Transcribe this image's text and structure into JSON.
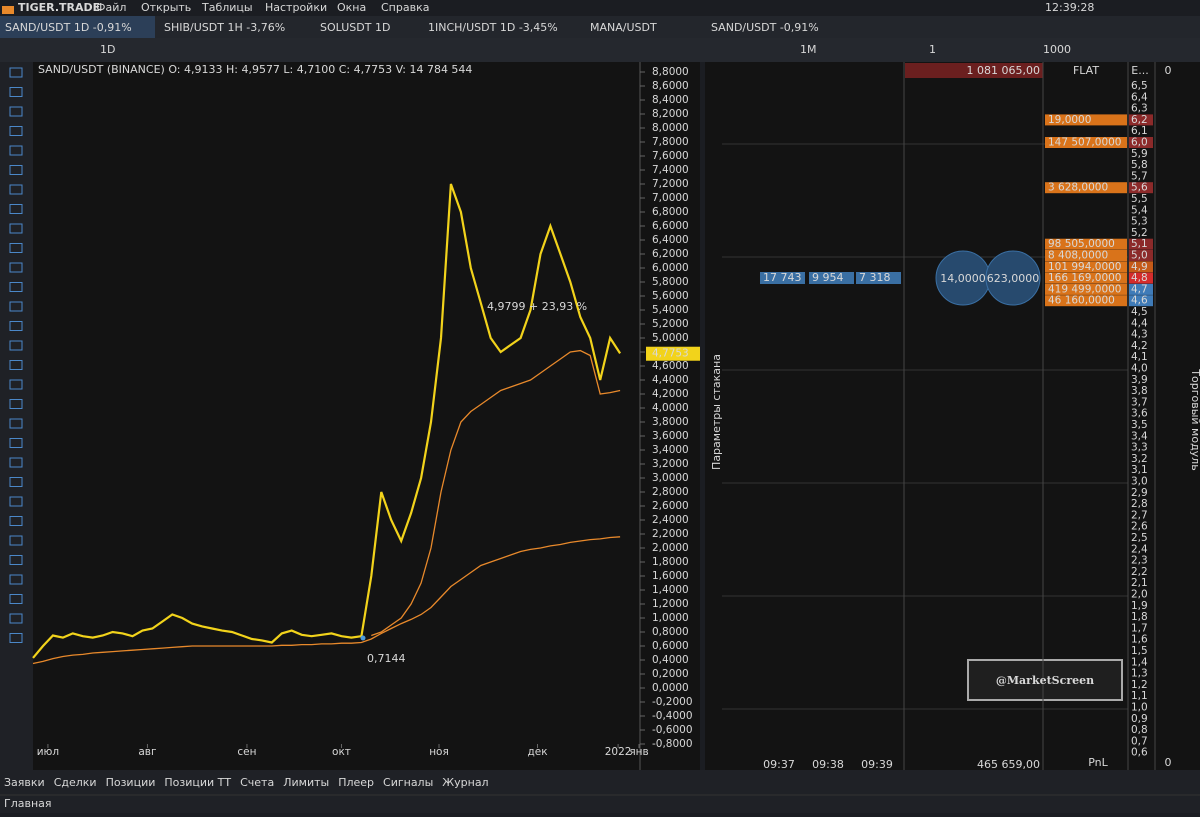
{
  "title_bar": {
    "logo": "TIGER.TRADE",
    "menu": [
      "Файл",
      "Открыть",
      "Таблицы",
      "Настройки",
      "Окна",
      "Справка"
    ],
    "clock": "12:39:28"
  },
  "tabs": [
    "SAND/USDT 1D -0,91%",
    "SHIB/USDT 1H -3,76%",
    "SOLUSDT 1D",
    "1INCH/USDT 1D -3,45%",
    "MANA/USDT"
  ],
  "dom_tab": "SAND/USDT -0,91%",
  "toolbar": {
    "timeframe": "1D",
    "dom_timeframe": "1M",
    "dom_count": "1",
    "dom_step": "1000"
  },
  "price_chart": {
    "header": "SAND/USDT (BINANCE) O: 4,9133 H: 4,9577 L: 4,7100 C: 4,7753 V: 14 784 544",
    "ylim": [
      -0.8,
      8.8
    ],
    "xlim": [
      0,
      61
    ],
    "yticks": [
      {
        "value": 8.8,
        "label": "8,8000"
      },
      {
        "value": 8.6,
        "label": "8,6000"
      },
      {
        "value": 8.4,
        "label": "8,4000"
      },
      {
        "value": 8.2,
        "label": "8,2000"
      },
      {
        "value": 8,
        "label": "8,0000"
      },
      {
        "value": 7.8,
        "label": "7,8000"
      },
      {
        "value": 7.6,
        "label": "7,6000"
      },
      {
        "value": 7.4,
        "label": "7,4000"
      },
      {
        "value": 7.2,
        "label": "7,2000"
      },
      {
        "value": 7,
        "label": "7,0000"
      },
      {
        "value": 6.8,
        "label": "6,8000"
      },
      {
        "value": 6.6,
        "label": "6,6000"
      },
      {
        "value": 6.4,
        "label": "6,4000"
      },
      {
        "value": 6.2,
        "label": "6,2000"
      },
      {
        "value": 6,
        "label": "6,0000"
      },
      {
        "value": 5.8,
        "label": "5,8000"
      },
      {
        "value": 5.6,
        "label": "5,6000"
      },
      {
        "value": 5.4,
        "label": "5,4000"
      },
      {
        "value": 5.2,
        "label": "5,2000"
      },
      {
        "value": 5,
        "label": "5,0000"
      },
      {
        "value": 4.8,
        "label": "4,8000"
      },
      {
        "value": 4.6,
        "label": "4,6000"
      },
      {
        "value": 4.4,
        "label": "4,4000"
      },
      {
        "value": 4.2,
        "label": "4,2000"
      },
      {
        "value": 4,
        "label": "4,0000"
      },
      {
        "value": 3.8,
        "label": "3,8000"
      },
      {
        "value": 3.6,
        "label": "3,6000"
      },
      {
        "value": 3.4,
        "label": "3,4000"
      },
      {
        "value": 3.2,
        "label": "3,2000"
      },
      {
        "value": 3,
        "label": "3,0000"
      },
      {
        "value": 2.8,
        "label": "2,8000"
      },
      {
        "value": 2.6,
        "label": "2,6000"
      },
      {
        "value": 2.4,
        "label": "2,4000"
      },
      {
        "value": 2.2,
        "label": "2,2000"
      },
      {
        "value": 2,
        "label": "2,0000"
      },
      {
        "value": 1.8,
        "label": "1,8000"
      },
      {
        "value": 1.6,
        "label": "1,6000"
      },
      {
        "value": 1.4,
        "label": "1,4000"
      },
      {
        "value": 1.2,
        "label": "1,2000"
      },
      {
        "value": 1,
        "label": "1,0000"
      },
      {
        "value": 0.8,
        "label": "0,8000"
      },
      {
        "value": 0.6,
        "label": "0,6000"
      },
      {
        "value": 0.4,
        "label": "0,4000"
      },
      {
        "value": 0.2,
        "label": "0,2000"
      },
      {
        "value": 0,
        "label": "0,0000"
      },
      {
        "value": -0.2,
        "label": "-0,2000"
      },
      {
        "value": -0.4,
        "label": "-0,4000"
      },
      {
        "value": -0.6,
        "label": "-0,6000"
      },
      {
        "value": -0.8,
        "label": "-0,8000"
      }
    ],
    "xticks": [
      {
        "value": 1.5,
        "label": "июл"
      },
      {
        "value": 11.5,
        "label": "авг"
      },
      {
        "value": 21.5,
        "label": "сен"
      },
      {
        "value": 31,
        "label": "окт"
      },
      {
        "value": 40.8,
        "label": "ноя"
      },
      {
        "value": 50.7,
        "label": "дек"
      },
      {
        "value": 58.8,
        "label": "2022"
      },
      {
        "value": 60.9,
        "label": "янв"
      }
    ],
    "close": {
      "color": "#f2d31b",
      "values": [
        0.43,
        0.6,
        0.75,
        0.72,
        0.78,
        0.74,
        0.72,
        0.75,
        0.8,
        0.78,
        0.74,
        0.82,
        0.85,
        0.95,
        1.05,
        1.0,
        0.92,
        0.88,
        0.85,
        0.82,
        0.8,
        0.75,
        0.7,
        0.68,
        0.65,
        0.78,
        0.82,
        0.76,
        0.74,
        0.76,
        0.78,
        0.74,
        0.72,
        0.74,
        1.6,
        2.8,
        2.4,
        2.1,
        2.5,
        3.0,
        3.8,
        5.0,
        7.2,
        6.8,
        6.0,
        5.5,
        5.0,
        4.8,
        4.9,
        5.0,
        5.4,
        6.2,
        6.6,
        6.2,
        5.8,
        5.3,
        5.0,
        4.4,
        5.0,
        4.78
      ]
    },
    "ma_fast": {
      "color": "#e8892b",
      "values": [
        null,
        null,
        null,
        null,
        null,
        null,
        null,
        null,
        null,
        null,
        null,
        null,
        null,
        null,
        null,
        null,
        null,
        null,
        null,
        null,
        null,
        null,
        null,
        null,
        null,
        null,
        null,
        null,
        null,
        null,
        null,
        null,
        null,
        null,
        0.75,
        0.8,
        0.9,
        1.0,
        1.2,
        1.5,
        2.0,
        2.8,
        3.4,
        3.8,
        3.95,
        4.05,
        4.15,
        4.25,
        4.3,
        4.35,
        4.4,
        4.5,
        4.6,
        4.7,
        4.8,
        4.82,
        4.75,
        4.2,
        4.22,
        4.25
      ]
    },
    "ma_slow": {
      "color": "#e8892b",
      "values": [
        0.35,
        0.38,
        0.42,
        0.45,
        0.47,
        0.48,
        0.5,
        0.51,
        0.52,
        0.53,
        0.54,
        0.55,
        0.56,
        0.57,
        0.58,
        0.59,
        0.6,
        0.6,
        0.6,
        0.6,
        0.6,
        0.6,
        0.6,
        0.6,
        0.6,
        0.61,
        0.61,
        0.62,
        0.62,
        0.63,
        0.63,
        0.64,
        0.64,
        0.65,
        0.7,
        0.78,
        0.85,
        0.92,
        0.98,
        1.05,
        1.15,
        1.3,
        1.45,
        1.55,
        1.65,
        1.75,
        1.8,
        1.85,
        1.9,
        1.95,
        1.98,
        2.0,
        2.03,
        2.05,
        2.08,
        2.1,
        2.12,
        2.13,
        2.15,
        2.16
      ]
    },
    "last_price": {
      "value": 4.7753,
      "label": "4,7753"
    },
    "low_annotation": {
      "value": 0.7144,
      "label": "0,7144"
    },
    "change_annotation": "4,9799 + 23,93 %"
  },
  "order_book": {
    "top_volume": "1 081 065,00",
    "headers": [
      "FLAT",
      "E...",
      "0"
    ],
    "levels": [
      {
        "price": "6,5"
      },
      {
        "price": "6,4"
      },
      {
        "price": "6,3"
      },
      {
        "price": "6,2",
        "size": "19,0000",
        "color": "#8c2a2a"
      },
      {
        "price": "6,1"
      },
      {
        "price": "6,0",
        "size": "147 507,0000",
        "color": "#8c2a2a"
      },
      {
        "price": "5,9"
      },
      {
        "price": "5,8"
      },
      {
        "price": "5,7"
      },
      {
        "price": "5,6",
        "size": "3 628,0000",
        "color": "#8c2a2a"
      },
      {
        "price": "5,5"
      },
      {
        "price": "5,4"
      },
      {
        "price": "5,3"
      },
      {
        "price": "5,2"
      },
      {
        "price": "5,1",
        "size": "98 505,0000",
        "color": "#8c2a2a"
      },
      {
        "price": "5,0",
        "size": "8 408,0000",
        "color": "#8c2a2a"
      },
      {
        "price": "4,9",
        "size": "101 994,0000",
        "color": "#c55a18"
      },
      {
        "price": "4,8",
        "size": "166 169,0000",
        "color": "#d42c2c"
      },
      {
        "price": "4,7",
        "size": "419 499,0000",
        "color": "#3f7bb8"
      },
      {
        "price": "4,6",
        "size": "46 160,0000",
        "color": "#3f7bb8"
      },
      {
        "price": "4,5"
      },
      {
        "price": "4,4"
      },
      {
        "price": "4,3"
      },
      {
        "price": "4,2"
      },
      {
        "price": "4,1"
      },
      {
        "price": "4,0"
      },
      {
        "price": "3,9"
      },
      {
        "price": "3,8"
      },
      {
        "price": "3,7"
      },
      {
        "price": "3,6"
      },
      {
        "price": "3,5"
      },
      {
        "price": "3,4"
      },
      {
        "price": "3,3"
      },
      {
        "price": "3,2"
      },
      {
        "price": "3,1"
      },
      {
        "price": "3,0"
      },
      {
        "price": "2,9"
      },
      {
        "price": "2,8"
      },
      {
        "price": "2,7"
      },
      {
        "price": "2,6"
      },
      {
        "price": "2,5"
      },
      {
        "price": "2,4"
      },
      {
        "price": "2,3"
      },
      {
        "price": "2,2"
      },
      {
        "price": "2,1"
      },
      {
        "price": "2,0"
      },
      {
        "price": "1,9"
      },
      {
        "price": "1,8"
      },
      {
        "price": "1,7"
      },
      {
        "price": "1,6"
      },
      {
        "price": "1,5"
      },
      {
        "price": "1,4"
      },
      {
        "price": "1,3"
      },
      {
        "price": "1,2"
      },
      {
        "price": "1,1"
      },
      {
        "price": "1,0"
      },
      {
        "price": "0,9"
      },
      {
        "price": "0,8"
      },
      {
        "price": "0,7"
      },
      {
        "price": "0,6"
      }
    ],
    "bottom_volume": "465 659,00",
    "pnl_label": "PnL",
    "pnl": "0",
    "times": [
      "09:37",
      "09:38",
      "09:39"
    ],
    "clusters": [
      "17 743",
      "9 954",
      "7 318"
    ],
    "bubbles": [
      "14,0000",
      "623,0000"
    ],
    "side_label": "Параметры стакана",
    "module_label": "Торговый модуль"
  },
  "watermark": "@MarketScreen",
  "bottom_tabs": [
    "Заявки",
    "Сделки",
    "Позиции",
    "Позиции ТТ",
    "Счета",
    "Лимиты",
    "Плеер",
    "Сигналы",
    "Журнал"
  ],
  "workspace": "Главная"
}
